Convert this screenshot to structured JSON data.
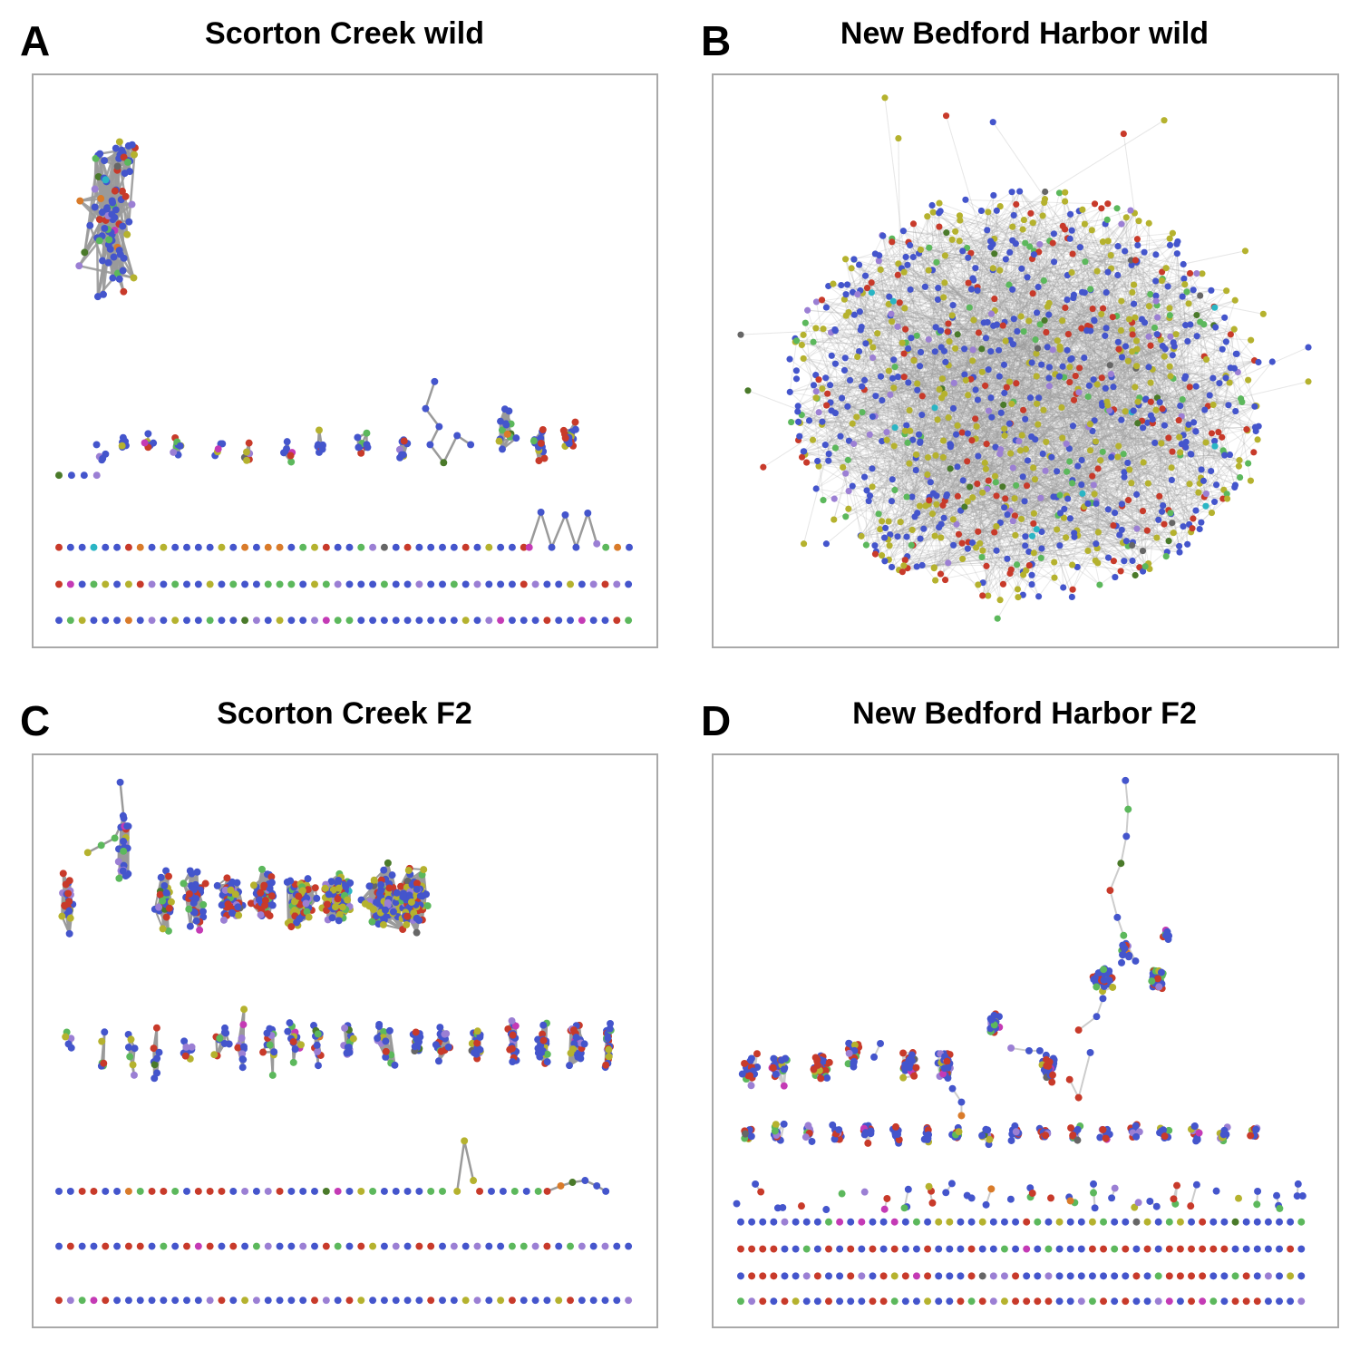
{
  "panels": [
    {
      "id": "A",
      "letter": "A",
      "title": "Scorton Creek wild"
    },
    {
      "id": "B",
      "letter": "B",
      "title": "New Bedford Harbor wild"
    },
    {
      "id": "C",
      "letter": "C",
      "title": "Scorton Creek F2"
    },
    {
      "id": "D",
      "letter": "D",
      "title": "New Bedford Harbor F2"
    }
  ],
  "colors": {
    "blue": "#4455cc",
    "red": "#c83a2a",
    "green": "#5cb85c",
    "olive": "#b5b22e",
    "purple": "#9b7fd4",
    "magenta": "#c43ab5",
    "orange": "#d97b2a",
    "darkgreen": "#4a7a2a",
    "gray": "#666666",
    "teal": "#2ab5c4",
    "darkpurple": "#7a3a8a",
    "edge": "#9a9a9a",
    "edge_light": "#cccccc",
    "border": "#a9a9a9"
  }
}
